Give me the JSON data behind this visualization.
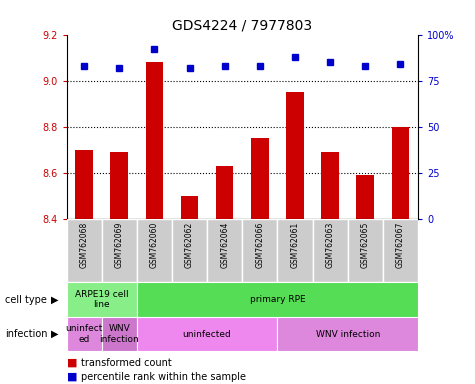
{
  "title": "GDS4224 / 7977803",
  "samples": [
    "GSM762068",
    "GSM762069",
    "GSM762060",
    "GSM762062",
    "GSM762064",
    "GSM762066",
    "GSM762061",
    "GSM762063",
    "GSM762065",
    "GSM762067"
  ],
  "transformed_counts": [
    8.7,
    8.69,
    9.08,
    8.5,
    8.63,
    8.75,
    8.95,
    8.69,
    8.59,
    8.8
  ],
  "percentile_ranks": [
    83,
    82,
    92,
    82,
    83,
    83,
    88,
    85,
    83,
    84
  ],
  "ylim_left": [
    8.4,
    9.2
  ],
  "ylim_right": [
    0,
    100
  ],
  "yticks_left": [
    8.4,
    8.6,
    8.8,
    9.0,
    9.2
  ],
  "yticks_right": [
    0,
    25,
    50,
    75,
    100
  ],
  "ytick_labels_right": [
    "0",
    "25",
    "50",
    "75",
    "100%"
  ],
  "bar_color": "#cc0000",
  "dot_color": "#0000cc",
  "cell_types": [
    {
      "label": "ARPE19 cell\nline",
      "start": 0,
      "end": 2,
      "color": "#88ee88"
    },
    {
      "label": "primary RPE",
      "start": 2,
      "end": 10,
      "color": "#55dd55"
    }
  ],
  "infection_groups": [
    {
      "label": "uninfect\ned",
      "start": 0,
      "end": 1,
      "color": "#dd88dd"
    },
    {
      "label": "WNV\ninfection",
      "start": 1,
      "end": 2,
      "color": "#dd88dd"
    },
    {
      "label": "uninfected",
      "start": 2,
      "end": 6,
      "color": "#ee88ee"
    },
    {
      "label": "WNV infection",
      "start": 6,
      "end": 10,
      "color": "#dd88dd"
    }
  ],
  "legend_labels": [
    "transformed count",
    "percentile rank within the sample"
  ],
  "legend_colors": [
    "#cc0000",
    "#0000cc"
  ],
  "row_labels": [
    "cell type",
    "infection"
  ],
  "sample_bg_color": "#cccccc",
  "sample_border_color": "#ffffff"
}
